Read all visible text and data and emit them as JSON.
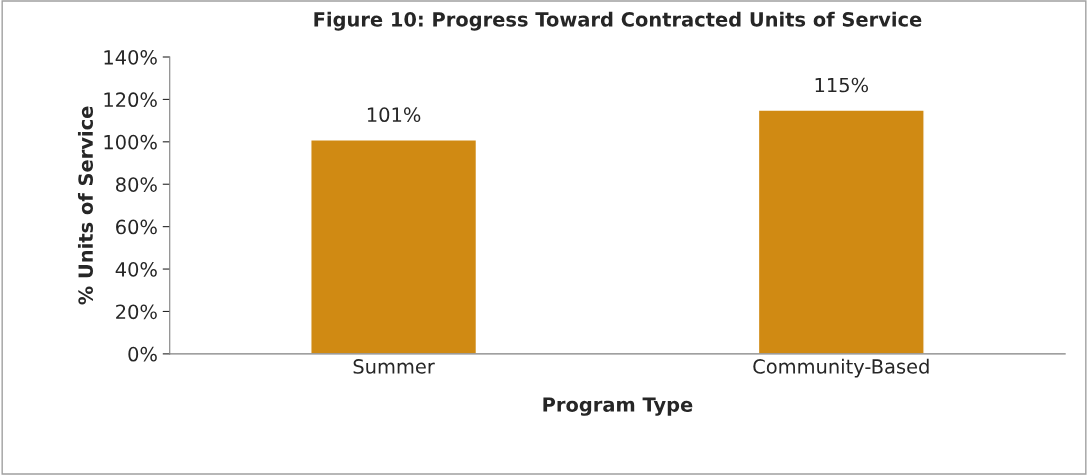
{
  "chart_data": {
    "type": "bar",
    "title": "Figure 10: Progress Toward Contracted Units of Service",
    "xlabel": "Program Type",
    "ylabel": "% Units of Service",
    "categories": [
      "Summer",
      "Community-Based"
    ],
    "values": [
      101,
      115
    ],
    "color": "#d08a13",
    "value_labels": [
      "101%",
      "115%"
    ],
    "ylim": [
      0,
      140
    ],
    "yticks": [
      {
        "value": 0,
        "label": "0%"
      },
      {
        "value": 20,
        "label": "20%"
      },
      {
        "value": 40,
        "label": "40%"
      },
      {
        "value": 60,
        "label": "60%"
      },
      {
        "value": 80,
        "label": "80%"
      },
      {
        "value": 100,
        "label": "100%"
      },
      {
        "value": 120,
        "label": "120%"
      },
      {
        "value": 140,
        "label": "140%"
      }
    ],
    "grid": false,
    "legend": false
  }
}
